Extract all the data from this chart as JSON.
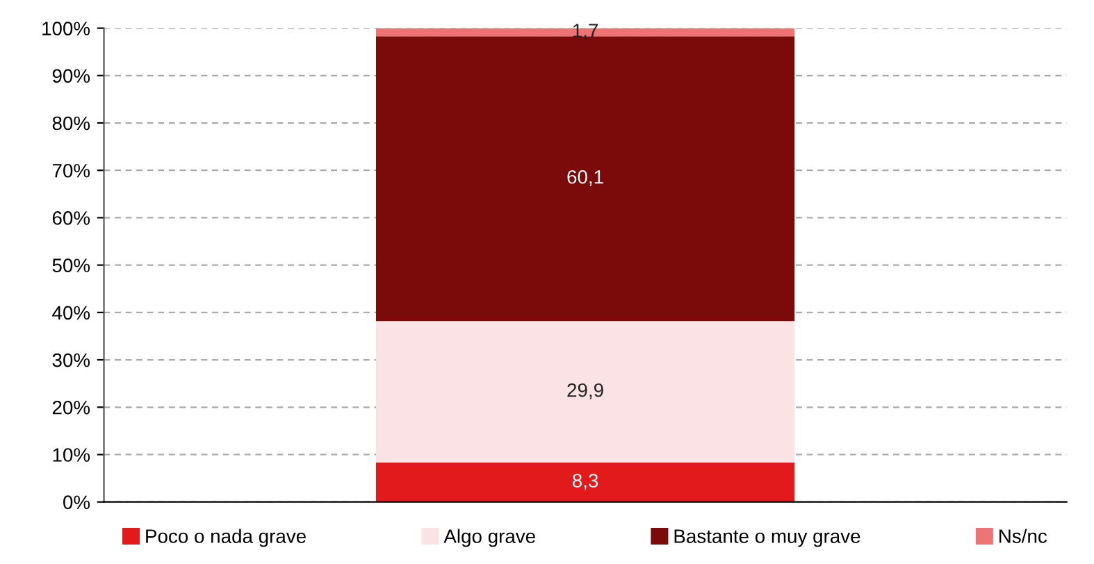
{
  "chart_data": {
    "type": "bar",
    "stacked": true,
    "categories": [
      null
    ],
    "series": [
      {
        "name": "Poco o nada grave",
        "color": "#e31a1c",
        "values": [
          8.3
        ],
        "value_labels": [
          "8,3"
        ]
      },
      {
        "name": "Algo grave",
        "color": "#fbe3e5",
        "values": [
          29.9
        ],
        "value_labels": [
          "29,9"
        ]
      },
      {
        "name": "Bastante o muy grave",
        "color": "#7b0a0a",
        "values": [
          60.1
        ],
        "value_labels": [
          "60,1"
        ]
      },
      {
        "name": "Ns/nc",
        "color": "#ec7474",
        "values": [
          1.7
        ],
        "value_labels": [
          "1,7"
        ]
      }
    ],
    "ylim": [
      0,
      100
    ],
    "yticks": [
      {
        "value": 0,
        "label": "0%"
      },
      {
        "value": 10,
        "label": "10%"
      },
      {
        "value": 20,
        "label": "20%"
      },
      {
        "value": 30,
        "label": "30%"
      },
      {
        "value": 40,
        "label": "40%"
      },
      {
        "value": 50,
        "label": "50%"
      },
      {
        "value": 60,
        "label": "60%"
      },
      {
        "value": 70,
        "label": "70%"
      },
      {
        "value": 80,
        "label": "80%"
      },
      {
        "value": 90,
        "label": "90%"
      },
      {
        "value": 100,
        "label": "100%"
      }
    ],
    "grid": "y",
    "legend": "bottom"
  }
}
